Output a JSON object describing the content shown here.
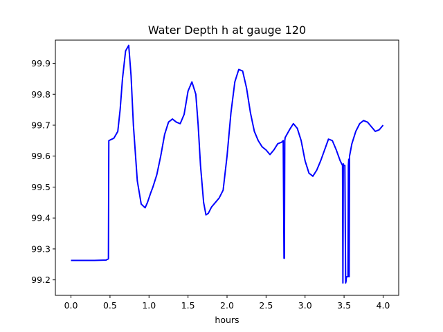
{
  "chart_data": {
    "type": "line",
    "title": "Water Depth h at gauge 120",
    "xlabel": "hours",
    "ylabel": "",
    "xlim": [
      -0.2,
      4.2
    ],
    "ylim": [
      99.15,
      99.975
    ],
    "xticks": [
      0.0,
      0.5,
      1.0,
      1.5,
      2.0,
      2.5,
      3.0,
      3.5,
      4.0
    ],
    "xtick_labels": [
      "0.0",
      "0.5",
      "1.0",
      "1.5",
      "2.0",
      "2.5",
      "3.0",
      "3.5",
      "4.0"
    ],
    "yticks": [
      99.2,
      99.3,
      99.4,
      99.5,
      99.6,
      99.7,
      99.8,
      99.9
    ],
    "ytick_labels": [
      "99.2",
      "99.3",
      "99.4",
      "99.5",
      "99.6",
      "99.7",
      "99.8",
      "99.9"
    ],
    "grid": false,
    "colors": {
      "line": "#0000ff",
      "axes": "#000000",
      "background": "#ffffff"
    },
    "series": [
      {
        "x": [
          0.0,
          0.3,
          0.45,
          0.48,
          0.485,
          0.5,
          0.55,
          0.6,
          0.63,
          0.66,
          0.7,
          0.74,
          0.77,
          0.8,
          0.85,
          0.9,
          0.95,
          0.98,
          1.02,
          1.05,
          1.1,
          1.15,
          1.2,
          1.25,
          1.3,
          1.35,
          1.4,
          1.45,
          1.5,
          1.55,
          1.6,
          1.63,
          1.66,
          1.7,
          1.73,
          1.76,
          1.8,
          1.85,
          1.9,
          1.95,
          2.0,
          2.05,
          2.1,
          2.15,
          2.2,
          2.25,
          2.3,
          2.35,
          2.4,
          2.45,
          2.5,
          2.55,
          2.6,
          2.65,
          2.7,
          2.72,
          2.73,
          2.735,
          2.74,
          2.745,
          2.8,
          2.85,
          2.9,
          2.95,
          3.0,
          3.05,
          3.1,
          3.15,
          3.2,
          3.25,
          3.3,
          3.35,
          3.4,
          3.45,
          3.47,
          3.48,
          3.485,
          3.49,
          3.495,
          3.51,
          3.52,
          3.525,
          3.53,
          3.55,
          3.555,
          3.56,
          3.565,
          3.57,
          3.6,
          3.65,
          3.7,
          3.75,
          3.8,
          3.85,
          3.9,
          3.95,
          4.0
        ],
        "y": [
          99.263,
          99.263,
          99.264,
          99.268,
          99.65,
          99.652,
          99.658,
          99.68,
          99.75,
          99.85,
          99.94,
          99.958,
          99.86,
          99.7,
          99.52,
          99.445,
          99.433,
          99.45,
          99.48,
          99.5,
          99.54,
          99.6,
          99.67,
          99.71,
          99.72,
          99.71,
          99.705,
          99.735,
          99.81,
          99.84,
          99.8,
          99.7,
          99.57,
          99.45,
          99.41,
          99.415,
          99.435,
          99.45,
          99.465,
          99.49,
          99.6,
          99.74,
          99.84,
          99.88,
          99.875,
          99.82,
          99.74,
          99.68,
          99.65,
          99.63,
          99.62,
          99.605,
          99.62,
          99.64,
          99.645,
          99.65,
          99.27,
          99.27,
          99.65,
          99.66,
          99.685,
          99.705,
          99.69,
          99.65,
          99.585,
          99.545,
          99.535,
          99.555,
          99.585,
          99.62,
          99.655,
          99.65,
          99.62,
          99.585,
          99.575,
          99.57,
          99.19,
          99.575,
          99.57,
          99.57,
          99.19,
          99.195,
          99.21,
          99.21,
          99.57,
          99.59,
          99.21,
          99.6,
          99.64,
          99.68,
          99.705,
          99.715,
          99.71,
          99.695,
          99.68,
          99.685,
          99.7
        ]
      }
    ]
  }
}
